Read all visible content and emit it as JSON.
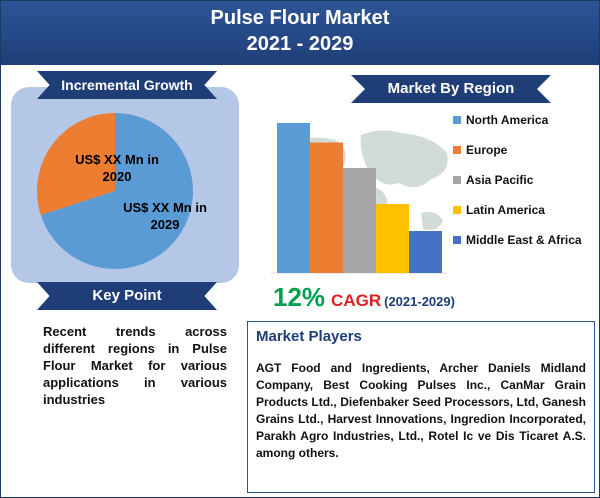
{
  "header": {
    "title": "Pulse Flour Market",
    "years": "2021 - 2029"
  },
  "incremental": {
    "label": "Incremental Growth",
    "slice_2020": "US$ XX Mn in 2020",
    "slice_2029": "US$ XX Mn in 2029"
  },
  "key_point": {
    "label": "Key Point",
    "text": "Recent trends across different regions in Pulse Flour Market for various applications in various industries"
  },
  "region": {
    "label": "Market By Region"
  },
  "cagr": {
    "percent": "12%",
    "label": "CAGR",
    "years": "(2021-2029)"
  },
  "players": {
    "title": "Market Players",
    "text": "AGT Food and Ingredients, Archer Daniels Midland Company, Best Cooking Pulses Inc., CanMar Grain Products Ltd., Diefenbaker Seed Processors, Ltd, Ganesh Grains Ltd., Harvest Innovations, Ingredion Incorporated, Parakh Agro Industries, Ltd., Rotel Ic ve Dis Ticaret A.S. among others."
  },
  "chart_data": [
    {
      "type": "pie",
      "labels": [
        "US$ XX Mn in 2020",
        "US$ XX Mn in 2029"
      ],
      "values": [
        30,
        70
      ],
      "colors": [
        "#ed7d31",
        "#5b9bd5"
      ]
    },
    {
      "type": "bar",
      "title": "Market By Region",
      "categories": [
        "North America",
        "Europe",
        "Asia Pacific",
        "Latin America",
        "Middle East & Africa"
      ],
      "values": [
        100,
        87,
        70,
        46,
        28
      ],
      "colors": [
        "#5b9bd5",
        "#ed7d31",
        "#a5a5a5",
        "#ffc000",
        "#4472c4"
      ],
      "legend": "right",
      "grid": false
    }
  ]
}
